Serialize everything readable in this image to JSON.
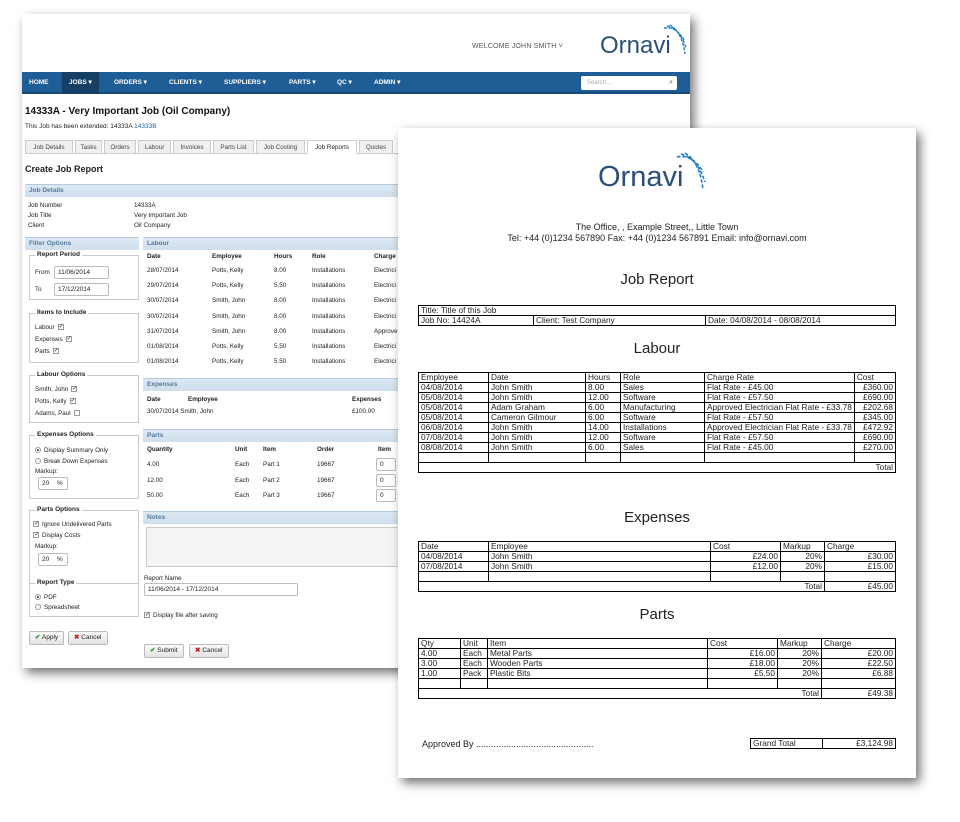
{
  "app": {
    "welcome": "WELCOME JOHN SMITH ˅",
    "logo": "Ornavi",
    "nav": [
      "HOME",
      "JOBS ▾",
      "ORDERS ▾",
      "CLIENTS ▾",
      "SUPPLIERS ▾",
      "PARTS ▾",
      "QC ▾",
      "ADMIN ▾"
    ],
    "search_placeholder": "Search..."
  },
  "job": {
    "title": "14333A - Very Important Job (Oil Company)",
    "extended_text": "This Job has been extended: 14333A",
    "extended_link": "14333B"
  },
  "tabs": [
    "Job Details",
    "Tasks",
    "Orders",
    "Labour",
    "Invoices",
    "Parts List",
    "Job Costing",
    "Job Reports",
    "Quotes"
  ],
  "create_header": "Create Job Report",
  "job_details": {
    "header": "Job Details",
    "rows": [
      {
        "label": "Job Number",
        "value": "14333A"
      },
      {
        "label": "Job Title",
        "value": "Very Important Job"
      },
      {
        "label": "Client",
        "value": "Oil Company"
      }
    ]
  },
  "filter": {
    "header": "Filter Options",
    "report_period": {
      "legend": "Report Period",
      "from_label": "From",
      "from": "11/06/2014",
      "to_label": "To",
      "to": "17/12/2014"
    },
    "items": {
      "legend": "Items to Include",
      "options": [
        "Labour",
        "Expenses",
        "Parts"
      ]
    },
    "labour_opts": {
      "legend": "Labour Options",
      "options": [
        "Smith, John",
        "Potts, Kelly",
        "Adams, Paul"
      ]
    },
    "expense_opts": {
      "legend": "Expenses Options",
      "radio": [
        "Display Summary Only",
        "Break Down Expenses"
      ],
      "markup_label": "Markup:",
      "markup": "20",
      "pct": "%"
    },
    "parts_opts": {
      "legend": "Parts Options",
      "checks": [
        "Ignore Undelivered Parts",
        "Display Costs"
      ],
      "markup_label": "Markup:",
      "markup": "20",
      "pct": "%"
    },
    "report_type": {
      "legend": "Report Type",
      "radio": [
        "PDF",
        "Spreadsheet"
      ]
    },
    "apply": "Apply",
    "cancel": "Cancel"
  },
  "labour_panel": {
    "header": "Labour",
    "cols": [
      "Date",
      "Employee",
      "Hours",
      "Role",
      "Charge"
    ],
    "rows": [
      [
        "28/07/2014",
        "Potts, Kelly",
        "8.00",
        "Installations",
        "Electrici"
      ],
      [
        "29/07/2014",
        "Potts, Kelly",
        "5.50",
        "Installations",
        "Electrici"
      ],
      [
        "30/07/2014",
        "Smith, John",
        "8.00",
        "Installations",
        "Electrici"
      ],
      [
        "30/07/2014",
        "Smith, John",
        "8.00",
        "Installations",
        "Electrici"
      ],
      [
        "31/07/2014",
        "Smith, John",
        "8.00",
        "Installations",
        "Approve"
      ],
      [
        "01/08/2014",
        "Potts, Kelly",
        "5.50",
        "Installations",
        "Electrici"
      ],
      [
        "01/08/2014",
        "Potts, Kelly",
        "5.50",
        "Installations",
        "Electrici"
      ]
    ]
  },
  "expenses_panel": {
    "header": "Expenses",
    "cols": [
      "Date",
      "Employee",
      "Expenses"
    ],
    "rows": [
      [
        "30/07/2014 Smith, John",
        "£100.00"
      ]
    ]
  },
  "parts_panel": {
    "header": "Parts",
    "cols": [
      "Quantity",
      "Unit",
      "Item",
      "Order",
      "Item"
    ],
    "rows": [
      [
        "4.00",
        "Each",
        "Part 1",
        "19667",
        "0"
      ],
      [
        "12.00",
        "Each",
        "Part 2",
        "19667",
        "0"
      ],
      [
        "50.00",
        "Each",
        "Part 3",
        "19667",
        "0"
      ]
    ]
  },
  "notes_header": "Notes",
  "report_name_label": "Report Name",
  "report_name": "11/06/2014 - 17/12/2014",
  "display_after_saving": "Display file after saving",
  "submit": "Submit",
  "cancel2": "Cancel",
  "doc": {
    "logo": "Ornavi",
    "address1": "The Office, , Example Street,, Little Town",
    "address2": "Tel: +44 (0)1234 567890 Fax: +44 (0)1234 567891 Email: info@ornavi.com",
    "title": "Job Report",
    "info": {
      "title": "Title: Title of this Job",
      "job_no": "Job No: 14424A",
      "client": "Client: Test Company",
      "date": "Date: 04/08/2014 - 08/08/2014"
    },
    "labour_title": "Labour",
    "labour_cols": [
      "Employee",
      "Date",
      "Hours",
      "Role",
      "Charge Rate",
      "Cost"
    ],
    "labour_rows": [
      [
        "04/08/2014",
        "John Smith",
        "8.00",
        "Sales",
        "Flat Rate - £45.00",
        "£360.00"
      ],
      [
        "05/08/2014",
        "John Smith",
        "12.00",
        "Software",
        "Flat Rate - £57.50",
        "£690.00"
      ],
      [
        "05/08/2014",
        "Adam Graham",
        "6.00",
        "Manufacturing",
        "Approved Electrician Flat Rate - £33.78",
        "£202.68"
      ],
      [
        "05/08/2014",
        "Cameron Gilmour",
        "6.00",
        "Software",
        "Flat Rate - £57.50",
        "£345.00"
      ],
      [
        "06/08/2014",
        "John Smith",
        "14.00",
        "Installations",
        "Approved Electrician Flat Rate - £33.78",
        "£472.92"
      ],
      [
        "07/08/2014",
        "John Smith",
        "12.00",
        "Software",
        "Flat Rate - £57.50",
        "£690.00"
      ],
      [
        "08/08/2014",
        "John Smith",
        "6.00",
        "Sales",
        "Flat Rate - £45.00",
        "£270.00"
      ]
    ],
    "labour_total": "Total",
    "expenses_title": "Expenses",
    "expenses_cols": [
      "Date",
      "Employee",
      "Cost",
      "Markup",
      "Charge"
    ],
    "expenses_rows": [
      [
        "04/08/2014",
        "John Smith",
        "£24.00",
        "20%",
        "£30.00"
      ],
      [
        "07/08/2014",
        "John Smith",
        "£12.00",
        "20%",
        "£15.00"
      ]
    ],
    "expenses_total_label": "Total",
    "expenses_total": "£45.00",
    "parts_title": "Parts",
    "parts_cols": [
      "Qty",
      "Unit",
      "Item",
      "Cost",
      "Markup",
      "Charge"
    ],
    "parts_rows": [
      [
        "4.00",
        "Each",
        "Metal Parts",
        "£16.00",
        "20%",
        "£20.00"
      ],
      [
        "3.00",
        "Each",
        "Wooden Parts",
        "£18.00",
        "20%",
        "£22.50"
      ],
      [
        "1.00",
        "Pack",
        "Plastic Bits",
        "£5.50",
        "20%",
        "£6.88"
      ]
    ],
    "parts_total_label": "Total",
    "parts_total": "£49.38",
    "approved_by": "Approved By ...............................................",
    "grand_total_label": "Grand Total",
    "grand_total": "£3,124.98"
  }
}
